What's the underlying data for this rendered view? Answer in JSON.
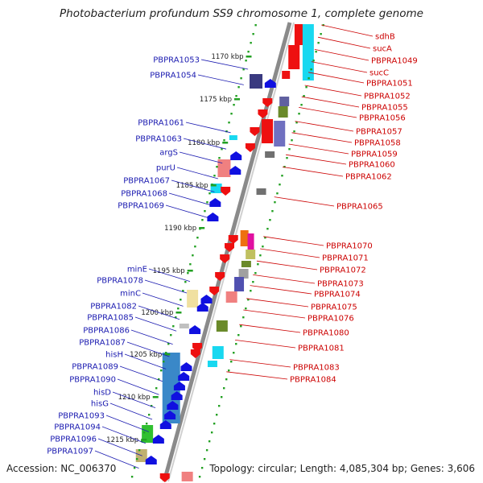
{
  "title": "Photobacterium profundum SS9 chromosome 1, complete genome",
  "accession": "Accession: NC_006370",
  "summary": "Topology: circular; Length: 4,085,304 bp; Genes: 3,606",
  "colors": {
    "backbone": "#8a8a8a",
    "ticks": "#22a022",
    "left_labels": "#1a1ab0",
    "right_labels": "#cc0000",
    "left_arrows": "#1010e0",
    "right_arrows": "#ee1010"
  },
  "kbp_labels": [
    "1170 kbp",
    "1175 kbp",
    "1180 kbp",
    "1185 kbp",
    "1190 kbp",
    "1195 kbp",
    "1200 kbp",
    "1205 kbp",
    "1210 kbp",
    "1215 kbp"
  ],
  "left_genes": [
    "PBPRA1053",
    "PBPRA1054",
    "PBPRA1061",
    "PBPRA1063",
    "argS",
    "purU",
    "PBPRA1067",
    "PBPRA1068",
    "PBPRA1069",
    "minE",
    "PBPRA1078",
    "minC",
    "PBPRA1082",
    "PBPRA1085",
    "PBPRA1086",
    "PBPRA1087",
    "hisH",
    "PBPRA1089",
    "PBPRA1090",
    "hisD",
    "hisG",
    "PBPRA1093",
    "PBPRA1094",
    "PBPRA1096",
    "PBPRA1097"
  ],
  "right_genes": [
    "sdhB",
    "sucA",
    "PBPRA1049",
    "sucC",
    "PBPRA1051",
    "PBPRA1052",
    "PBPRA1055",
    "PBPRA1056",
    "PBPRA1057",
    "PBPRA1058",
    "PBPRA1059",
    "PBPRA1060",
    "PBPRA1062",
    "PBPRA1065",
    "PBPRA1070",
    "PBPRA1071",
    "PBPRA1072",
    "PBPRA1073",
    "PBPRA1074",
    "PBPRA1075",
    "PBPRA1076",
    "PBPRA1080",
    "PBPRA1081",
    "PBPRA1083",
    "PBPRA1084"
  ]
}
